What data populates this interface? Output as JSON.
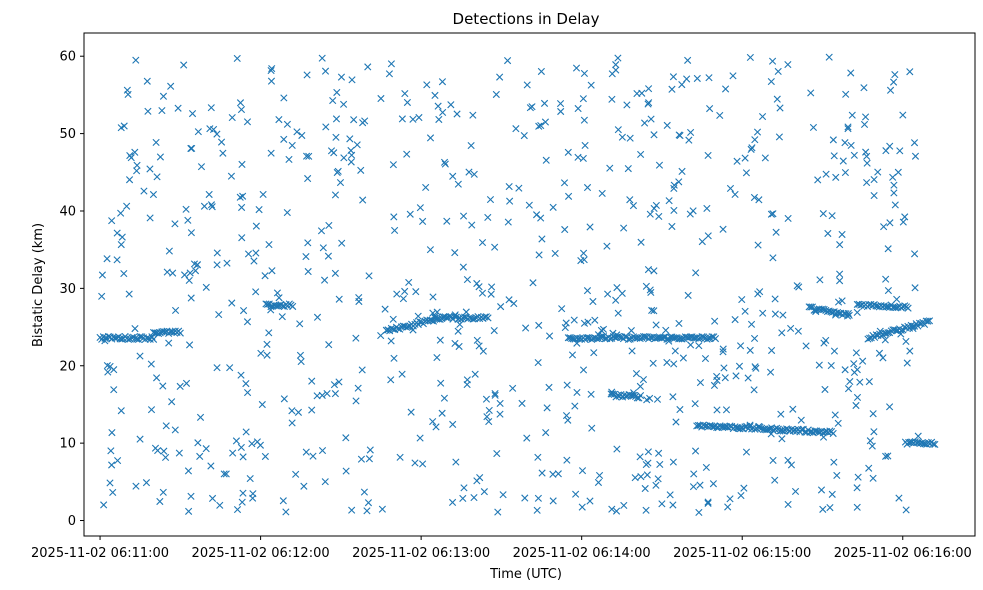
{
  "chart_data": {
    "type": "scatter",
    "title": "Detections in Delay",
    "xlabel": "Time (UTC)",
    "ylabel": "Bistatic Delay (km)",
    "x_tick_labels": [
      "2025-11-02 06:11:00",
      "2025-11-02 06:12:00",
      "2025-11-02 06:13:00",
      "2025-11-02 06:14:00",
      "2025-11-02 06:15:00",
      "2025-11-02 06:16:00"
    ],
    "y_ticks": [
      0,
      10,
      20,
      30,
      40,
      50,
      60
    ],
    "xlim": [
      "2025-11-02 06:10:54",
      "2025-11-02 06:16:27"
    ],
    "ylim": [
      -2,
      63
    ],
    "marker": "x",
    "color": "#1f77b4",
    "grid": false,
    "series": [
      {
        "note_seed": 7,
        "tracks": [
          {
            "t0": "2025-11-02 06:11:00",
            "t1": "2025-11-02 06:11:20",
            "y0": 23.6,
            "y1": 23.6
          },
          {
            "t0": "2025-11-02 06:11:20",
            "t1": "2025-11-02 06:11:30",
            "y0": 24.3,
            "y1": 24.3
          },
          {
            "t0": "2025-11-02 06:12:02",
            "t1": "2025-11-02 06:12:12",
            "y0": 27.8,
            "y1": 27.8
          },
          {
            "t0": "2025-11-02 06:12:47",
            "t1": "2025-11-02 06:13:09",
            "y0": 24.5,
            "y1": 26.3
          },
          {
            "t0": "2025-11-02 06:13:10",
            "t1": "2025-11-02 06:13:25",
            "y0": 26.2,
            "y1": 26.2
          },
          {
            "t0": "2025-11-02 06:13:55",
            "t1": "2025-11-02 06:14:50",
            "y0": 23.6,
            "y1": 23.6
          },
          {
            "t0": "2025-11-02 06:14:11",
            "t1": "2025-11-02 06:14:22",
            "y0": 16.2,
            "y1": 16.0
          },
          {
            "t0": "2025-11-02 06:14:43",
            "t1": "2025-11-02 06:15:34",
            "y0": 12.3,
            "y1": 11.4
          },
          {
            "t0": "2025-11-02 06:15:25",
            "t1": "2025-11-02 06:15:40",
            "y0": 27.5,
            "y1": 26.5
          },
          {
            "t0": "2025-11-02 06:15:43",
            "t1": "2025-11-02 06:16:02",
            "y0": 27.9,
            "y1": 27.6
          },
          {
            "t0": "2025-11-02 06:15:47",
            "t1": "2025-11-02 06:16:10",
            "y0": 23.6,
            "y1": 25.7
          },
          {
            "t0": "2025-11-02 06:16:01",
            "t1": "2025-11-02 06:16:12",
            "y0": 10.0,
            "y1": 10.0
          }
        ]
      }
    ]
  }
}
